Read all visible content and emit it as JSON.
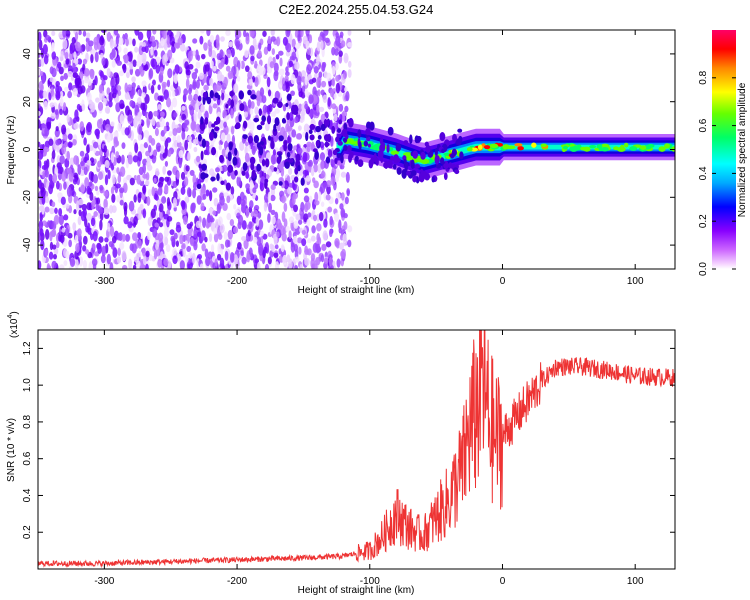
{
  "page_title": "C2E2.2024.255.04.53.G24",
  "chart_data": [
    {
      "type": "heatmap",
      "title": "C2E2.2024.255.04.53.G24",
      "xlabel": "Height of straight line (km)",
      "ylabel": "Frequency (Hz)",
      "xlim": [
        -350,
        130
      ],
      "ylim": [
        -50,
        50
      ],
      "x_ticks": [
        -300,
        -200,
        -100,
        0,
        100
      ],
      "y_ticks": [
        -40,
        -20,
        0,
        20,
        40
      ],
      "grid": false,
      "colorbar": {
        "label": "Normalized spectral amplitude",
        "range": [
          0,
          1
        ],
        "ticks": [
          "0.0",
          "0.2",
          "0.4",
          "0.6",
          "0.8"
        ],
        "colors": [
          "#ff00ff",
          "#8800ff",
          "#0000ff",
          "#00aaff",
          "#00ffff",
          "#00ff66",
          "#66ff00",
          "#ffff00",
          "#ff8800",
          "#ff0000",
          "#ff0066"
        ]
      },
      "regions": [
        {
          "x_range": [
            -350,
            -125
          ],
          "freq_range": [
            -50,
            50
          ],
          "level": 0.15,
          "description_level": "noise"
        },
        {
          "x_range": [
            -125,
            0
          ],
          "freq_center": -3,
          "freq_halfwidth": 4,
          "level": 0.45
        },
        {
          "x_range": [
            0,
            130
          ],
          "freq_center": 1,
          "freq_halfwidth": 2,
          "level": 0.6
        }
      ],
      "ridge": [
        {
          "x": -120,
          "y": 4
        },
        {
          "x": -100,
          "y": 2
        },
        {
          "x": -80,
          "y": -1
        },
        {
          "x": -60,
          "y": -5
        },
        {
          "x": -40,
          "y": -2
        },
        {
          "x": -20,
          "y": 1
        },
        {
          "x": 0,
          "y": 1
        },
        {
          "x": 50,
          "y": 1
        },
        {
          "x": 100,
          "y": 1
        },
        {
          "x": 130,
          "y": 1
        }
      ]
    },
    {
      "type": "line",
      "xlabel": "Height of straight line (km)",
      "ylabel": "SNR (10 * v/v)",
      "y_multiplier": "(x10",
      "y_multiplier_exp": "4",
      "y_multiplier_close": ")",
      "xlim": [
        -350,
        130
      ],
      "ylim": [
        0,
        1.3
      ],
      "x_ticks": [
        -300,
        -200,
        -100,
        0,
        100
      ],
      "y_ticks": [
        0.2,
        0.4,
        0.6,
        0.8,
        1.0,
        1.2
      ],
      "grid": false,
      "series": [
        {
          "color": "#ee3333",
          "x": [
            -350,
            -300,
            -250,
            -200,
            -150,
            -120,
            -100,
            -90,
            -80,
            -70,
            -60,
            -50,
            -40,
            -30,
            -25,
            -20,
            -15,
            -10,
            -5,
            0,
            10,
            20,
            30,
            40,
            60,
            80,
            100,
            130
          ],
          "y": [
            0.03,
            0.03,
            0.04,
            0.05,
            0.06,
            0.07,
            0.1,
            0.18,
            0.3,
            0.22,
            0.18,
            0.28,
            0.38,
            0.55,
            0.75,
            0.85,
            1.05,
            0.8,
            0.7,
            0.72,
            0.82,
            0.92,
            1.02,
            1.1,
            1.1,
            1.08,
            1.05,
            1.04
          ]
        }
      ]
    }
  ]
}
